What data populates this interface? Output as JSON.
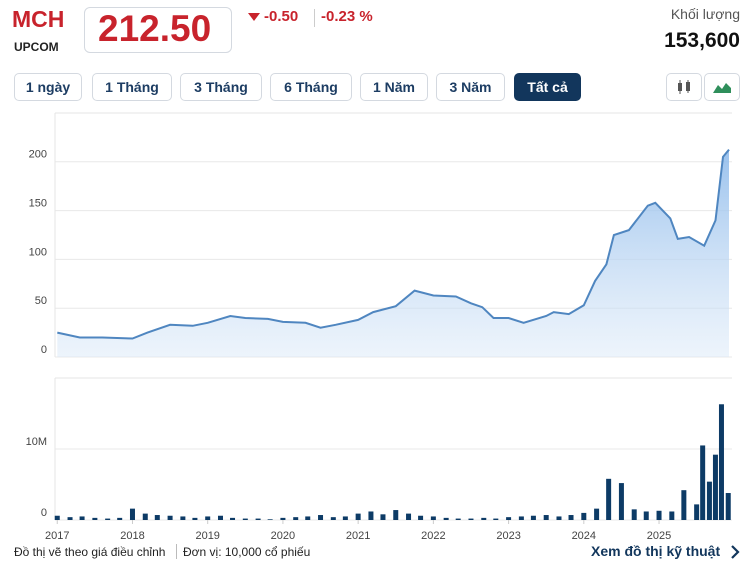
{
  "header": {
    "symbol": "MCH",
    "exchange": "UPCOM",
    "price": "212.50",
    "change": "-0.50",
    "change_pct": "-0.23 %",
    "volume_label": "Khối lượng",
    "volume": "153,600"
  },
  "tabs": {
    "items": [
      "1 ngày",
      "1 Tháng",
      "3 Tháng",
      "6 Tháng",
      "1 Năm",
      "3 Năm",
      "Tất cả"
    ],
    "active": 6
  },
  "chart_data": [
    {
      "type": "area",
      "color": "#4f86c0",
      "x": [
        2017.0,
        2017.3,
        2017.6,
        2018.0,
        2018.2,
        2018.5,
        2018.8,
        2019.0,
        2019.3,
        2019.5,
        2019.8,
        2020.0,
        2020.3,
        2020.5,
        2020.7,
        2021.0,
        2021.2,
        2021.5,
        2021.75,
        2022.0,
        2022.3,
        2022.5,
        2022.65,
        2022.8,
        2023.0,
        2023.2,
        2023.5,
        2023.6,
        2023.8,
        2024.0,
        2024.15,
        2024.3,
        2024.4,
        2024.6,
        2024.85,
        2024.95,
        2025.15,
        2025.25,
        2025.4,
        2025.6,
        2025.75,
        2025.85,
        2025.93
      ],
      "values": [
        25,
        20,
        20,
        19,
        25,
        33,
        32,
        35,
        42,
        40,
        39,
        36,
        35,
        30,
        33,
        38,
        46,
        52,
        68,
        63,
        62,
        55,
        51,
        40,
        40,
        35,
        42,
        46,
        44,
        53,
        78,
        95,
        125,
        130,
        155,
        158,
        142,
        121,
        123,
        114,
        140,
        205,
        212.5
      ],
      "xlim": [
        2016.97,
        2025.97
      ],
      "ylim": [
        0,
        250
      ],
      "yticks": [
        0,
        50,
        100,
        150,
        200
      ],
      "grid": true
    },
    {
      "type": "bar",
      "color": "#0d3b66",
      "x": [
        2017.0,
        2017.17,
        2017.33,
        2017.5,
        2017.67,
        2017.83,
        2018.0,
        2018.17,
        2018.33,
        2018.5,
        2018.67,
        2018.83,
        2019.0,
        2019.17,
        2019.33,
        2019.5,
        2019.67,
        2019.83,
        2020.0,
        2020.17,
        2020.33,
        2020.5,
        2020.67,
        2020.83,
        2021.0,
        2021.17,
        2021.33,
        2021.5,
        2021.67,
        2021.83,
        2022.0,
        2022.17,
        2022.33,
        2022.5,
        2022.67,
        2022.83,
        2023.0,
        2023.17,
        2023.33,
        2023.5,
        2023.67,
        2023.83,
        2024.0,
        2024.17,
        2024.33,
        2024.5,
        2024.67,
        2024.83,
        2025.0,
        2025.17,
        2025.33,
        2025.5,
        2025.58,
        2025.67,
        2025.75,
        2025.83,
        2025.92
      ],
      "values": [
        600000,
        400000,
        500000,
        300000,
        200000,
        300000,
        1600000,
        900000,
        700000,
        600000,
        500000,
        300000,
        500000,
        600000,
        300000,
        200000,
        200000,
        100000,
        300000,
        400000,
        500000,
        700000,
        400000,
        500000,
        900000,
        1200000,
        800000,
        1400000,
        900000,
        600000,
        500000,
        300000,
        200000,
        200000,
        300000,
        200000,
        400000,
        500000,
        600000,
        700000,
        500000,
        700000,
        1000000,
        1600000,
        5800000,
        5200000,
        1500000,
        1200000,
        1300000,
        1200000,
        4200000,
        2200000,
        10500000,
        5400000,
        9200000,
        16300000,
        3800000
      ],
      "xlim": [
        2016.97,
        2025.97
      ],
      "xticks": [
        2017,
        2018,
        2019,
        2020,
        2021,
        2022,
        2023,
        2024,
        2025
      ],
      "ylim": [
        0,
        20000000
      ],
      "yticks": [
        0,
        {
          "value": 10000000,
          "label": "10M"
        }
      ],
      "grid": true
    }
  ],
  "footer": {
    "note": "Đồ thị vẽ theo giá điều chỉnh",
    "unit": "Đơn vị: 10,000 cổ phiếu",
    "link": "Xem đồ thị kỹ thuật"
  }
}
